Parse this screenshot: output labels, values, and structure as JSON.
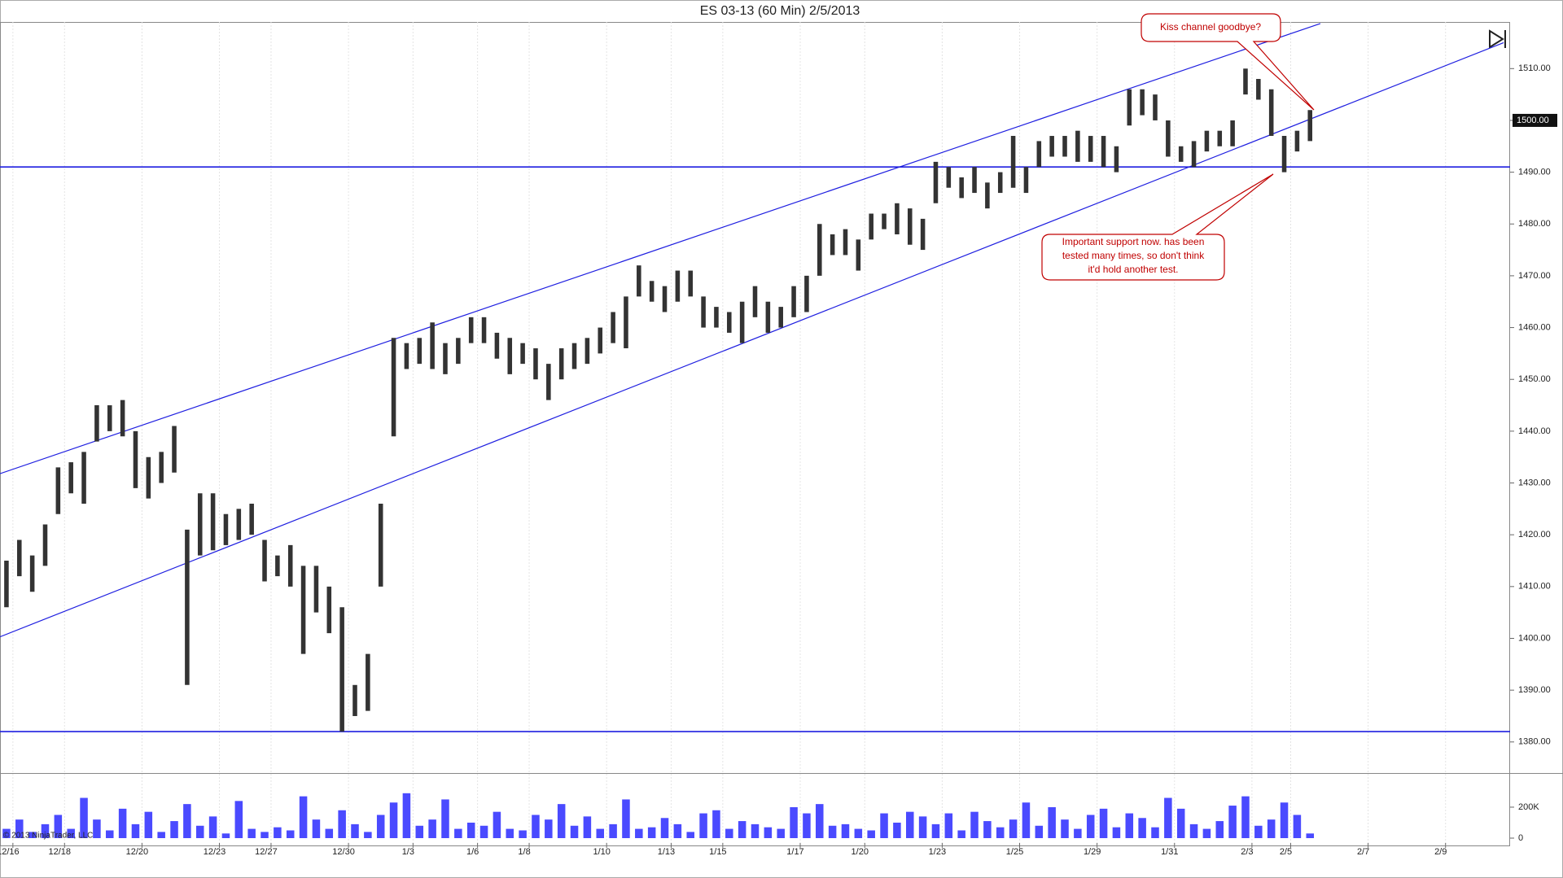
{
  "chart_data": {
    "type": "ohlc",
    "title": "ES 03-13 (60 Min)  2/5/2013",
    "copyright": "© 2013 NinjaTrader, LLC",
    "categories": [
      null,
      "12/16",
      null,
      null,
      null,
      "12/18",
      null,
      null,
      null,
      null,
      null,
      "12/20",
      null,
      null,
      null,
      null,
      null,
      "12/23",
      null,
      null,
      null,
      "12/27",
      null,
      null,
      null,
      null,
      null,
      "12/30",
      null,
      null,
      null,
      null,
      "1/3",
      null,
      null,
      null,
      null,
      "1/6",
      null,
      null,
      null,
      "1/8",
      null,
      null,
      null,
      null,
      null,
      "1/10",
      null,
      null,
      null,
      null,
      "1/13",
      null,
      null,
      null,
      "1/15",
      null,
      null,
      null,
      null,
      null,
      "1/17",
      null,
      null,
      null,
      null,
      "1/20",
      null,
      null,
      null,
      null,
      null,
      "1/23",
      null,
      null,
      null,
      null,
      null,
      "1/25",
      null,
      null,
      null,
      null,
      null,
      "1/29",
      null,
      null,
      null,
      null,
      null,
      "1/31",
      null,
      null,
      null,
      null,
      null,
      "2/3",
      null,
      null,
      "2/5",
      null,
      null,
      null,
      null,
      null,
      "2/7",
      null,
      null,
      null,
      null,
      null,
      "2/9",
      null,
      null,
      null,
      null
    ],
    "high": [
      1415,
      1419,
      1416,
      1422,
      1433,
      1434,
      1436,
      1445,
      1445,
      1446,
      1440,
      1435,
      1436,
      1441,
      1421,
      1428,
      1428,
      1424,
      1425,
      1426,
      1419,
      1416,
      1418,
      1414,
      1414,
      1410,
      1406,
      1391,
      1397,
      1426,
      1458,
      1457,
      1458,
      1461,
      1457,
      1458,
      1462,
      1462,
      1459,
      1458,
      1457,
      1456,
      1453,
      1456,
      1457,
      1458,
      1460,
      1463,
      1466,
      1472,
      1469,
      1468,
      1471,
      1471,
      1466,
      1464,
      1463,
      1465,
      1468,
      1465,
      1464,
      1468,
      1470,
      1480,
      1478,
      1479,
      1477,
      1482,
      1482,
      1484,
      1483,
      1481,
      1492,
      1491,
      1489,
      1491,
      1488,
      1490,
      1497,
      1491,
      1496,
      1497,
      1497,
      1498,
      1497,
      1497,
      1495,
      1506,
      1506,
      1505,
      1500,
      1495,
      1496,
      1498,
      1498,
      1500,
      1510,
      1508,
      1506,
      1497,
      1498,
      1502,
      null,
      null,
      null,
      null,
      null,
      null,
      null,
      null,
      null,
      null,
      null,
      null,
      null,
      null,
      null
    ],
    "low": [
      1406,
      1412,
      1409,
      1414,
      1424,
      1428,
      1426,
      1438,
      1440,
      1439,
      1429,
      1427,
      1430,
      1432,
      1391,
      1416,
      1417,
      1418,
      1419,
      1420,
      1411,
      1412,
      1410,
      1397,
      1405,
      1401,
      1382,
      1385,
      1386,
      1410,
      1439,
      1452,
      1453,
      1452,
      1451,
      1453,
      1457,
      1457,
      1454,
      1451,
      1453,
      1450,
      1446,
      1450,
      1452,
      1453,
      1455,
      1457,
      1456,
      1466,
      1465,
      1463,
      1465,
      1466,
      1460,
      1460,
      1459,
      1457,
      1462,
      1459,
      1460,
      1462,
      1463,
      1470,
      1474,
      1474,
      1471,
      1477,
      1479,
      1478,
      1476,
      1475,
      1484,
      1487,
      1485,
      1486,
      1483,
      1486,
      1487,
      1486,
      1491,
      1493,
      1493,
      1492,
      1492,
      1491,
      1490,
      1499,
      1501,
      1500,
      1493,
      1492,
      1491,
      1494,
      1495,
      1495,
      1505,
      1504,
      1497,
      1490,
      1494,
      1496,
      null,
      null,
      null,
      null,
      null,
      null,
      null,
      null,
      null,
      null,
      null,
      null,
      null,
      null,
      null
    ],
    "volume": [
      60000,
      120000,
      40000,
      90000,
      150000,
      60000,
      260000,
      120000,
      50000,
      190000,
      90000,
      170000,
      40000,
      110000,
      220000,
      80000,
      140000,
      30000,
      240000,
      60000,
      40000,
      70000,
      50000,
      270000,
      120000,
      60000,
      180000,
      90000,
      40000,
      150000,
      230000,
      290000,
      80000,
      120000,
      250000,
      60000,
      100000,
      80000,
      170000,
      60000,
      50000,
      150000,
      120000,
      220000,
      80000,
      140000,
      60000,
      90000,
      250000,
      60000,
      70000,
      130000,
      90000,
      40000,
      160000,
      180000,
      60000,
      110000,
      90000,
      70000,
      60000,
      200000,
      160000,
      220000,
      80000,
      90000,
      60000,
      50000,
      160000,
      100000,
      170000,
      140000,
      90000,
      160000,
      50000,
      170000,
      110000,
      70000,
      120000,
      230000,
      80000,
      200000,
      120000,
      60000,
      150000,
      190000,
      70000,
      160000,
      130000,
      70000,
      260000,
      190000,
      90000,
      60000,
      110000,
      210000,
      270000,
      80000,
      120000,
      230000,
      150000,
      30000,
      null,
      null,
      null,
      null,
      null,
      null,
      null,
      null,
      null,
      null,
      null,
      null,
      null,
      null,
      null
    ],
    "bar_color": "#333333",
    "volume_color": "#4a4aff",
    "ylim": [
      1374,
      1519
    ],
    "yticks": [
      {
        "value": 1380,
        "label": "1380.00"
      },
      {
        "value": 1390,
        "label": "1390.00"
      },
      {
        "value": 1400,
        "label": "1400.00"
      },
      {
        "value": 1410,
        "label": "1410.00"
      },
      {
        "value": 1420,
        "label": "1420.00"
      },
      {
        "value": 1430,
        "label": "1430.00"
      },
      {
        "value": 1440,
        "label": "1440.00"
      },
      {
        "value": 1450,
        "label": "1450.00"
      },
      {
        "value": 1460,
        "label": "1460.00"
      },
      {
        "value": 1470,
        "label": "1470.00"
      },
      {
        "value": 1480,
        "label": "1480.00"
      },
      {
        "value": 1490,
        "label": "1490.00"
      },
      {
        "value": 1500,
        "label": "1500.00"
      },
      {
        "value": 1510,
        "label": "1510.00"
      }
    ],
    "volume_ylim": [
      0,
      410000
    ],
    "volume_yticks": [
      0,
      {
        "value": 200000,
        "label": "200K"
      }
    ],
    "last_price": {
      "value": 1500,
      "label": "1500.00"
    },
    "line_color": "#1f1fe0",
    "horizontal_lines": [
      1491,
      1382
    ],
    "trend_lines": [
      {
        "x": [
          -0.5,
          101.8
        ],
        "y": [
          1431.8,
          1518.7
        ]
      },
      {
        "x": [
          -0.5,
          116
        ],
        "y": [
          1400.3,
          1515
        ]
      }
    ],
    "annotations": [
      {
        "lines": [
          "Kiss channel goodbye?"
        ]
      },
      {
        "lines": [
          "Important support now. has been",
          "tested many times, so don't think",
          "it'd hold another test."
        ]
      }
    ]
  }
}
